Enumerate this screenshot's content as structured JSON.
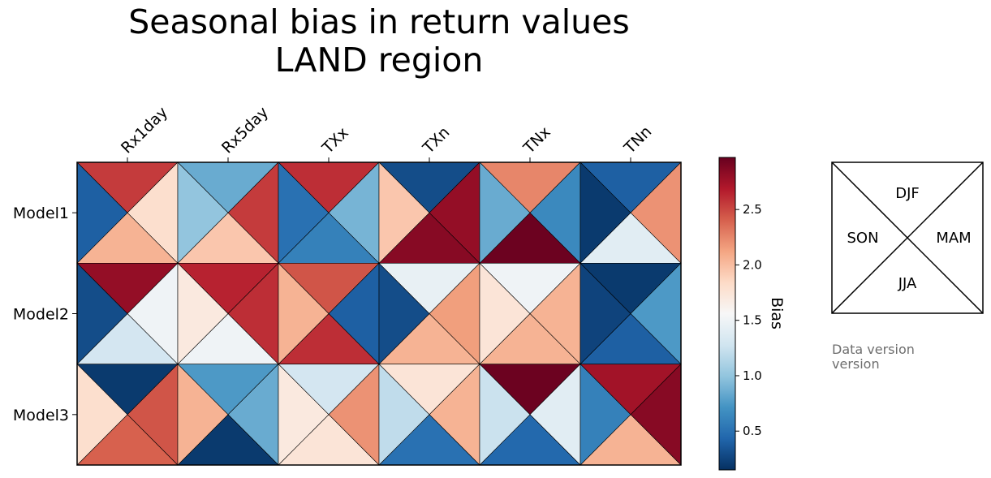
{
  "chart_data": {
    "type": "heatmap",
    "variant": "portrait-plot-4-triangles",
    "title_lines": [
      "Seasonal bias in return values",
      "LAND region"
    ],
    "columns": [
      "Rx1day",
      "Rx5day",
      "TXx",
      "TXn",
      "TNx",
      "TNn"
    ],
    "rows": [
      "Model1",
      "Model2",
      "Model3"
    ],
    "seasons": [
      "DJF",
      "MAM",
      "JJA",
      "SON"
    ],
    "values": {
      "DJF": [
        [
          2.55,
          0.85,
          2.6,
          0.3,
          2.25,
          0.4
        ],
        [
          2.8,
          2.65,
          2.45,
          1.45,
          1.5,
          0.2
        ],
        [
          0.2,
          0.75,
          1.3,
          1.75,
          2.95,
          2.75
        ]
      ],
      "MAM": [
        [
          1.8,
          2.55,
          0.9,
          2.8,
          0.65,
          2.2
        ],
        [
          1.5,
          2.6,
          0.4,
          2.15,
          2.05,
          0.75
        ],
        [
          2.45,
          0.85,
          2.2,
          2.05,
          1.4,
          2.85
        ]
      ],
      "JJA": [
        [
          2.05,
          1.95,
          0.6,
          2.85,
          2.95,
          1.4
        ],
        [
          1.3,
          1.5,
          2.6,
          2.05,
          2.05,
          0.4
        ],
        [
          2.4,
          0.2,
          1.75,
          0.5,
          0.45,
          2.05
        ]
      ],
      "SON": [
        [
          0.4,
          1.0,
          0.5,
          1.95,
          0.85,
          0.2
        ],
        [
          0.3,
          1.7,
          2.05,
          0.3,
          1.75,
          0.25
        ],
        [
          1.8,
          2.05,
          1.7,
          1.2,
          1.25,
          0.6
        ]
      ]
    },
    "colormap": "RdBu_r",
    "vmin": 0.15,
    "vmax": 2.97,
    "colorbar": {
      "label": "Bias",
      "ticks": [
        0.5,
        1.0,
        1.5,
        2.0,
        2.5
      ],
      "tick_labels": [
        "0.5",
        "1.0",
        "1.5",
        "2.0",
        "2.5"
      ]
    },
    "legend_placement": "right"
  },
  "data_version": [
    "Data version",
    "version"
  ]
}
